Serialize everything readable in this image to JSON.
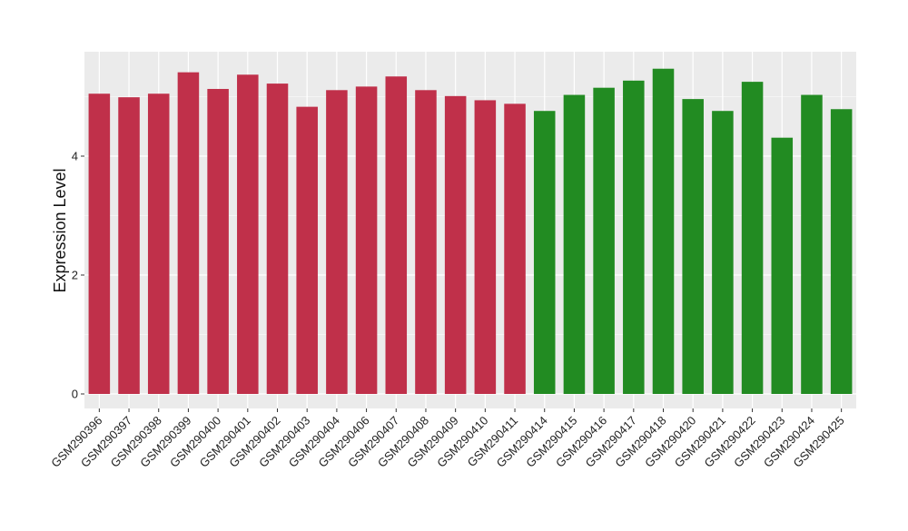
{
  "chart_data": {
    "type": "bar",
    "ylabel": "Expression Level",
    "xlabel": "",
    "ylim": [
      -0.25,
      5.7
    ],
    "yticks": [
      0,
      2,
      4
    ],
    "grid": true,
    "categories": [
      "GSM290396",
      "GSM290397",
      "GSM290398",
      "GSM290399",
      "GSM290400",
      "GSM290401",
      "GSM290402",
      "GSM290403",
      "GSM290404",
      "GSM290406",
      "GSM290407",
      "GSM290408",
      "GSM290409",
      "GSM290410",
      "GSM290411",
      "GSM290414",
      "GSM290415",
      "GSM290416",
      "GSM290417",
      "GSM290418",
      "GSM290420",
      "GSM290421",
      "GSM290422",
      "GSM290423",
      "GSM290424",
      "GSM290425"
    ],
    "values": [
      5.05,
      4.99,
      5.05,
      5.41,
      5.13,
      5.37,
      5.22,
      4.83,
      5.11,
      5.17,
      5.34,
      5.11,
      5.01,
      4.94,
      4.88,
      4.76,
      5.03,
      5.15,
      5.27,
      5.47,
      4.96,
      4.76,
      5.25,
      4.31,
      5.03,
      4.79
    ],
    "groups": [
      "a",
      "a",
      "a",
      "a",
      "a",
      "a",
      "a",
      "a",
      "a",
      "a",
      "a",
      "a",
      "a",
      "a",
      "a",
      "b",
      "b",
      "b",
      "b",
      "b",
      "b",
      "b",
      "b",
      "b",
      "b",
      "b"
    ],
    "group_colors": {
      "a": "#c0304a",
      "b": "#228b22"
    },
    "panel_background": "#ebebeb",
    "gridline_color": "#ffffff"
  }
}
